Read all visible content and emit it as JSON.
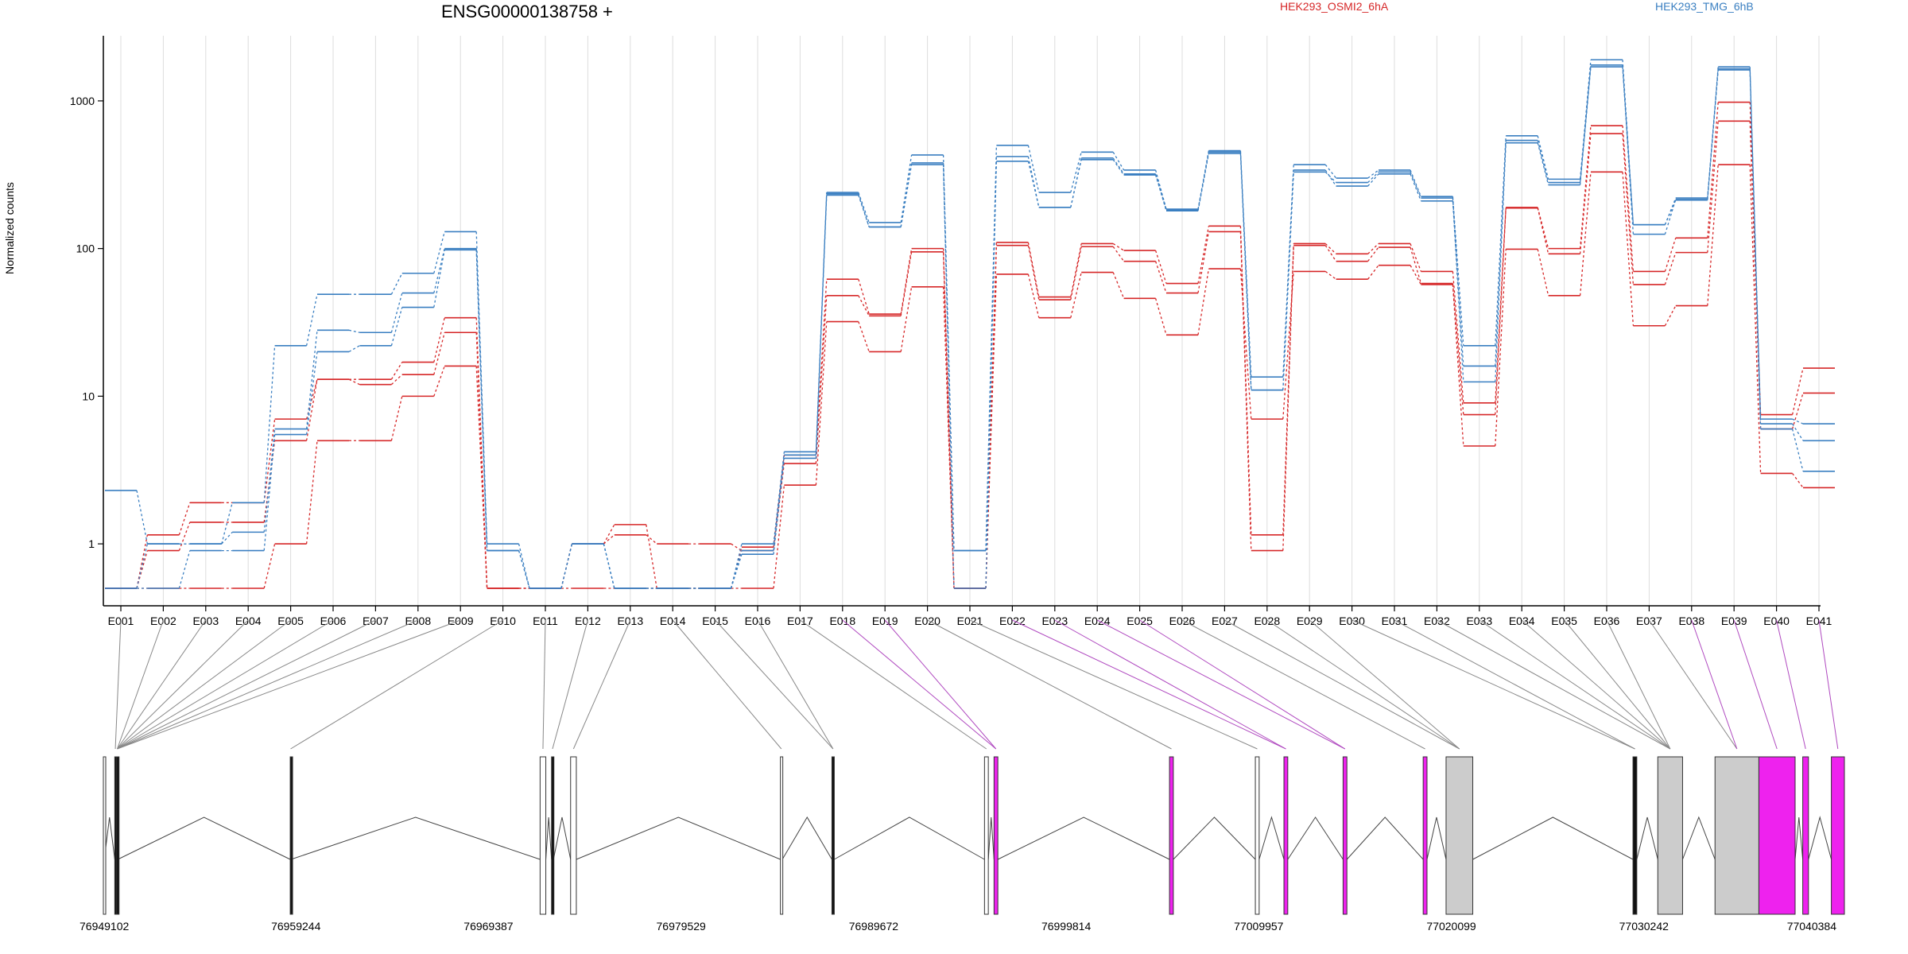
{
  "title": "ENSG00000138758 +",
  "legend": [
    {
      "name": "HEK293_OSMI2_6hA",
      "color": "#d62728"
    },
    {
      "name": "HEK293_TMG_6hB",
      "color": "#3a7fc1"
    }
  ],
  "colors": {
    "highlight": "#ee22ee",
    "exon_gray": "#cccccc",
    "grid": "#dddddd"
  },
  "chart_data": {
    "type": "line",
    "title": "ENSG00000138758 +",
    "ylabel": "Normalized counts",
    "xlabel": "",
    "yscale": "log",
    "ylim": [
      0.5,
      2500
    ],
    "yticks": [
      1,
      10,
      100,
      1000
    ],
    "ytick_labels": [
      "1",
      "10",
      "100",
      "1000"
    ],
    "grid": "vertical",
    "categories": [
      "E001",
      "E002",
      "E003",
      "E004",
      "E005",
      "E006",
      "E007",
      "E008",
      "E009",
      "E010",
      "E011",
      "E012",
      "E013",
      "E014",
      "E015",
      "E016",
      "E017",
      "E018",
      "E019",
      "E020",
      "E021",
      "E022",
      "E023",
      "E024",
      "E025",
      "E026",
      "E027",
      "E028",
      "E029",
      "E030",
      "E031",
      "E032",
      "E033",
      "E034",
      "E035",
      "E036",
      "E037",
      "E038",
      "E039",
      "E040",
      "E041"
    ],
    "series": [
      {
        "group": "HEK293_OSMI2_6hA",
        "values": [
          0.5,
          1.15,
          1.9,
          1.9,
          7,
          13,
          13,
          17,
          34,
          0.5,
          0.5,
          1,
          1.35,
          0.5,
          0.5,
          0.95,
          4,
          62,
          36,
          100,
          0.5,
          110,
          47,
          108,
          97,
          58,
          142,
          1.15,
          108,
          92,
          108,
          70,
          9,
          190,
          100,
          680,
          70,
          118,
          980,
          7.5,
          15.5
        ]
      },
      {
        "group": "HEK293_OSMI2_6hA",
        "values": [
          0.5,
          0.9,
          1.4,
          1.4,
          5,
          13,
          12,
          14,
          27,
          0.5,
          0.5,
          1,
          1.15,
          1,
          1,
          0.9,
          3.5,
          48,
          35,
          95,
          0.5,
          105,
          45,
          103,
          82,
          50,
          130,
          0.9,
          105,
          82,
          102,
          58,
          7.5,
          188,
          92,
          600,
          57,
          94,
          730,
          6,
          10.5
        ]
      },
      {
        "group": "HEK293_OSMI2_6hA",
        "values": [
          0.5,
          0.5,
          0.5,
          0.5,
          1,
          5,
          5,
          10,
          16,
          0.5,
          0.5,
          0.5,
          0.5,
          0.5,
          0.5,
          0.5,
          2.5,
          32,
          20,
          55,
          0.5,
          67,
          34,
          69,
          46,
          26,
          73,
          7,
          70,
          62,
          77,
          57,
          4.6,
          99,
          48,
          330,
          30,
          41,
          370,
          3,
          2.4
        ]
      },
      {
        "group": "HEK293_TMG_6hB",
        "values": [
          2.3,
          1,
          1,
          1.9,
          22,
          49,
          49,
          68,
          130,
          1,
          0.5,
          1,
          0.5,
          0.5,
          0.5,
          1,
          4.2,
          240,
          150,
          430,
          0.9,
          500,
          240,
          450,
          340,
          185,
          460,
          13.5,
          370,
          300,
          340,
          225,
          22,
          580,
          295,
          1900,
          145,
          220,
          1700,
          7,
          6.5
        ]
      },
      {
        "group": "HEK293_TMG_6hB",
        "values": [
          0.5,
          1,
          1,
          1.2,
          6,
          28,
          27,
          50,
          100,
          0.9,
          0.5,
          1,
          0.5,
          0.5,
          0.5,
          0.9,
          4,
          235,
          140,
          370,
          0.9,
          420,
          190,
          410,
          320,
          183,
          450,
          11,
          330,
          280,
          330,
          220,
          16,
          540,
          280,
          1750,
          125,
          215,
          1620,
          6.5,
          5
        ]
      },
      {
        "group": "HEK293_TMG_6hB",
        "values": [
          0.5,
          0.5,
          0.9,
          0.9,
          5.5,
          20,
          22,
          40,
          98,
          0.9,
          0.5,
          1,
          0.5,
          0.5,
          0.5,
          0.85,
          3.8,
          230,
          140,
          380,
          0.5,
          390,
          190,
          400,
          315,
          180,
          440,
          11,
          340,
          265,
          320,
          210,
          12.5,
          520,
          270,
          1700,
          145,
          213,
          1650,
          6,
          3.1
        ]
      }
    ],
    "exon_highlight": [
      false,
      false,
      false,
      false,
      false,
      false,
      false,
      false,
      false,
      false,
      false,
      false,
      false,
      false,
      false,
      false,
      false,
      true,
      true,
      false,
      false,
      true,
      true,
      true,
      true,
      false,
      false,
      false,
      false,
      false,
      false,
      false,
      false,
      false,
      false,
      false,
      false,
      true,
      true,
      true,
      true
    ],
    "genome_ticks": [
      "76949102",
      "76959244",
      "76969387",
      "76979529",
      "76989672",
      "76999814",
      "77009957",
      "77020099",
      "77030242",
      "77040384"
    ],
    "genome_range": [
      76949102,
      77040384
    ],
    "gene_exons": [
      {
        "start": 76949102,
        "end": 76949150,
        "fill": "none"
      },
      {
        "start": 76949700,
        "end": 76949760,
        "fill": "black"
      },
      {
        "start": 76949800,
        "end": 76949860,
        "fill": "black"
      },
      {
        "start": 76958900,
        "end": 76958940,
        "fill": "black"
      },
      {
        "start": 76972000,
        "end": 76972300,
        "fill": "none"
      },
      {
        "start": 76972600,
        "end": 76972700,
        "fill": "black"
      },
      {
        "start": 76973600,
        "end": 76973900,
        "fill": "none"
      },
      {
        "start": 76984600,
        "end": 76984700,
        "fill": "none"
      },
      {
        "start": 76987300,
        "end": 76987420,
        "fill": "black"
      },
      {
        "start": 76995300,
        "end": 76995500,
        "fill": "none"
      },
      {
        "start": 76995800,
        "end": 76996000,
        "fill": "magenta"
      },
      {
        "start": 77005000,
        "end": 77005200,
        "fill": "magenta"
      },
      {
        "start": 77009500,
        "end": 77009700,
        "fill": "none"
      },
      {
        "start": 77011000,
        "end": 77011200,
        "fill": "magenta"
      },
      {
        "start": 77014100,
        "end": 77014300,
        "fill": "magenta"
      },
      {
        "start": 77018300,
        "end": 77018500,
        "fill": "magenta"
      },
      {
        "start": 77019500,
        "end": 77020900,
        "fill": "gray"
      },
      {
        "start": 77029300,
        "end": 77029500,
        "fill": "black"
      },
      {
        "start": 77030600,
        "end": 77031900,
        "fill": "gray"
      },
      {
        "start": 77033600,
        "end": 77035900,
        "fill": "gray"
      },
      {
        "start": 77035900,
        "end": 77037800,
        "fill": "magenta"
      },
      {
        "start": 77038200,
        "end": 77038500,
        "fill": "magenta"
      },
      {
        "start": 77039700,
        "end": 77040384,
        "fill": "magenta"
      }
    ],
    "exon_to_gene": [
      1,
      2,
      2,
      2,
      2,
      2,
      2,
      2,
      2,
      3,
      4,
      5,
      6,
      7,
      8,
      8,
      9,
      10,
      10,
      11,
      12,
      13,
      13,
      14,
      14,
      15,
      16,
      16,
      16,
      17,
      17,
      18,
      18,
      18,
      18,
      18,
      19,
      19,
      20,
      21,
      22
    ]
  }
}
